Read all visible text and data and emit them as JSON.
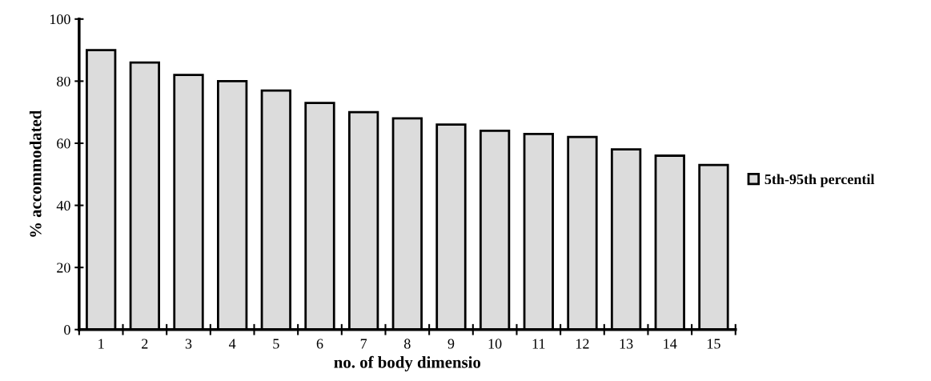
{
  "chart_data": {
    "type": "bar",
    "xlabel": "no. of body dimensio",
    "ylabel": "% accommodated",
    "categories": [
      "1",
      "2",
      "3",
      "4",
      "5",
      "6",
      "7",
      "8",
      "9",
      "10",
      "11",
      "12",
      "13",
      "14",
      "15"
    ],
    "series": [
      {
        "name": "5th-95th percentil",
        "color": "#dcdcdc",
        "values": [
          90,
          86,
          82,
          80,
          77,
          73,
          70,
          68,
          66,
          64,
          63,
          62,
          58,
          56,
          53
        ]
      }
    ],
    "ylim": [
      0,
      100
    ],
    "yticks": [
      0,
      20,
      40,
      60,
      80,
      100
    ],
    "grid": false,
    "legend": "right"
  }
}
